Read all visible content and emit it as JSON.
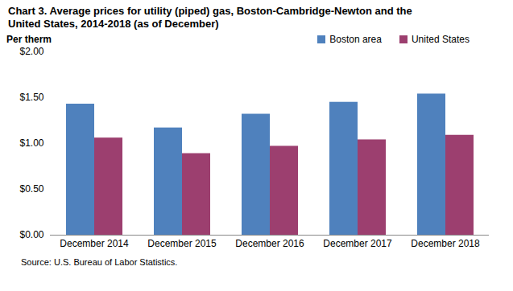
{
  "chart_data": {
    "type": "bar",
    "title": "Chart 3. Average prices for utility (piped) gas, Boston-Cambridge-Newton and the United  States, 2014-2018 (as of December)",
    "ylabel": "Per therm",
    "source": "Source: U.S. Bureau of Labor Statistics.",
    "categories": [
      "December 2014",
      "December 2015",
      "December 2016",
      "December 2017",
      "December 2018"
    ],
    "series": [
      {
        "name": "Boston area",
        "color": "#4f81bd",
        "values": [
          1.43,
          1.17,
          1.32,
          1.45,
          1.54
        ]
      },
      {
        "name": "United States",
        "color": "#9c3f6f",
        "values": [
          1.06,
          0.89,
          0.97,
          1.04,
          1.09
        ]
      }
    ],
    "ylim": [
      0,
      2
    ],
    "yticks": [
      {
        "value": 0,
        "label": "$0.00"
      },
      {
        "value": 0.5,
        "label": "$0.50"
      },
      {
        "value": 1,
        "label": "$1.00"
      },
      {
        "value": 1.5,
        "label": "$1.50"
      },
      {
        "value": 2,
        "label": "$2.00"
      }
    ],
    "grid": false,
    "legend": "top-right"
  }
}
